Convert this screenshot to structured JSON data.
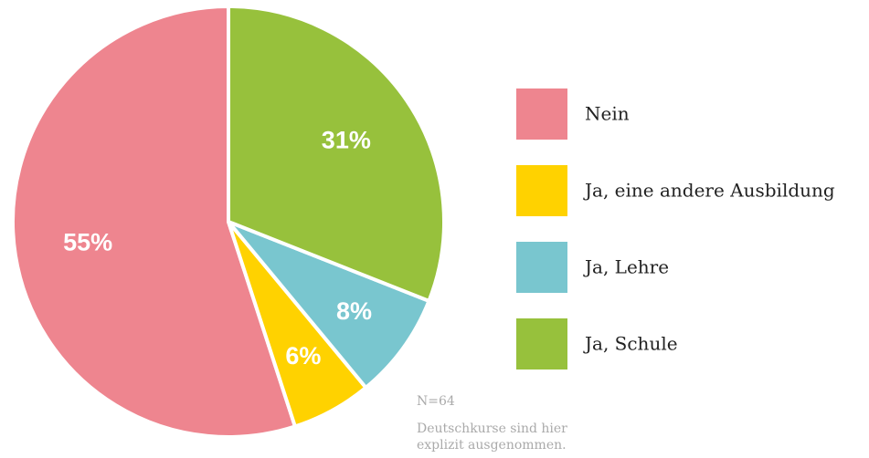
{
  "chart_data": {
    "type": "pie",
    "categories": [
      "Nein",
      "Ja, eine andere Ausbildung",
      "Ja, Lehre",
      "Ja, Schule"
    ],
    "values": [
      55,
      6,
      8,
      31
    ],
    "value_labels": [
      "55%",
      "6%",
      "8%",
      "31%"
    ],
    "colors": [
      "#ee858f",
      "#ffd200",
      "#79c6cf",
      "#97c13c"
    ],
    "legend": "right",
    "notes": [
      "N=64",
      "Deutschkurse sind hier",
      "explizit ausgenommen."
    ]
  }
}
